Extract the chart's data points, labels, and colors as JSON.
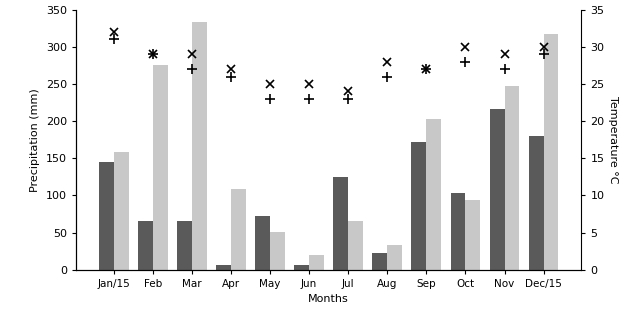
{
  "months": [
    "Jan/15",
    "Feb",
    "Mar",
    "Apr",
    "May",
    "Jun",
    "Jul",
    "Aug",
    "Sep",
    "Oct",
    "Nov",
    "Dec/15"
  ],
  "precip_barbosa": [
    145,
    66,
    65,
    6,
    73,
    7,
    125,
    23,
    172,
    103,
    217,
    180
  ],
  "precip_ninfeias": [
    158,
    275,
    333,
    109,
    51,
    20,
    65,
    33,
    203,
    94,
    248,
    317
  ],
  "temp_barbosa_x": [
    32,
    29,
    29,
    27,
    25,
    25,
    24,
    28,
    27,
    30,
    29,
    30
  ],
  "temp_ninfeias_plus": [
    31,
    29,
    27,
    26,
    23,
    23,
    23,
    26,
    27,
    28,
    27,
    29
  ],
  "bar_color_dark": "#5a5a5a",
  "bar_color_light": "#c8c8c8",
  "ylim_left": [
    0,
    350
  ],
  "ylim_right": [
    0,
    35
  ],
  "ylabel_left": "Precipitation (mm)",
  "ylabel_right": "Temperature °C",
  "xlabel": "Months",
  "figsize": [
    6.32,
    3.25
  ],
  "dpi": 100
}
